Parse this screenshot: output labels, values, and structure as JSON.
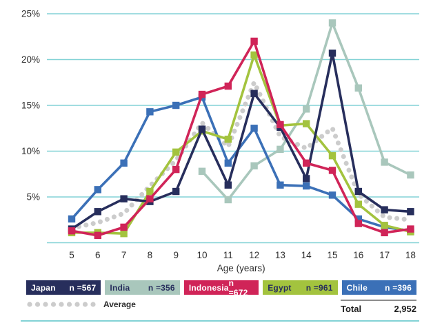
{
  "chart_data": {
    "type": "line",
    "title": "",
    "xlabel": "Age (years)",
    "ylabel": "",
    "x": [
      5,
      6,
      7,
      8,
      9,
      10,
      11,
      12,
      13,
      14,
      15,
      16,
      17,
      18
    ],
    "ylim": [
      0,
      25
    ],
    "yticks": [
      5,
      10,
      15,
      20,
      25
    ],
    "ytick_labels": [
      "5%",
      "10%",
      "15%",
      "20%",
      "25%"
    ],
    "grid": true,
    "legend_position": "bottom",
    "series": [
      {
        "name": "Japan",
        "n_label": "n =567",
        "color": "#272e5c",
        "text_color": "#ffffff",
        "values": [
          1.5,
          3.4,
          4.8,
          4.5,
          5.6,
          12.4,
          6.3,
          16.3,
          12.6,
          7.0,
          20.7,
          5.6,
          3.6,
          3.4
        ]
      },
      {
        "name": "India",
        "n_label": "n =356",
        "color": "#a9c7bc",
        "text_color": "#272e5c",
        "values": [
          null,
          null,
          null,
          null,
          null,
          7.8,
          4.7,
          8.4,
          10.2,
          14.6,
          24.0,
          16.9,
          8.8,
          7.4
        ]
      },
      {
        "name": "Indonesia",
        "n_label": "n =672",
        "color": "#d02458",
        "text_color": "#ffffff",
        "values": [
          1.3,
          0.8,
          1.7,
          4.8,
          8.0,
          16.2,
          17.1,
          22.0,
          12.9,
          8.7,
          7.9,
          2.1,
          1.1,
          1.5
        ]
      },
      {
        "name": "Egypt",
        "n_label": "n =961",
        "color": "#a3c33e",
        "text_color": "#272e5c",
        "values": [
          1.1,
          1.1,
          1.0,
          5.6,
          9.9,
          12.2,
          11.3,
          20.5,
          12.8,
          13.0,
          9.5,
          4.2,
          1.9,
          1.2
        ]
      },
      {
        "name": "Chile",
        "n_label": "n =396",
        "color": "#3b70b7",
        "text_color": "#ffffff",
        "values": [
          2.6,
          5.8,
          8.7,
          14.3,
          15.0,
          15.9,
          8.7,
          12.5,
          6.3,
          6.2,
          5.2,
          2.6,
          1.7,
          1.3
        ]
      }
    ],
    "average": {
      "name": "Average",
      "color": "#cccccc",
      "values": [
        1.6,
        2.2,
        3.2,
        6.2,
        9.0,
        13.1,
        10.5,
        17.5,
        11.6,
        10.3,
        12.5,
        5.3,
        2.8,
        2.5
      ]
    },
    "total": {
      "label": "Total",
      "value": "2,952"
    },
    "colors": {
      "gridline": "#82d2d5",
      "axis_text": "#2d2d2d"
    }
  }
}
